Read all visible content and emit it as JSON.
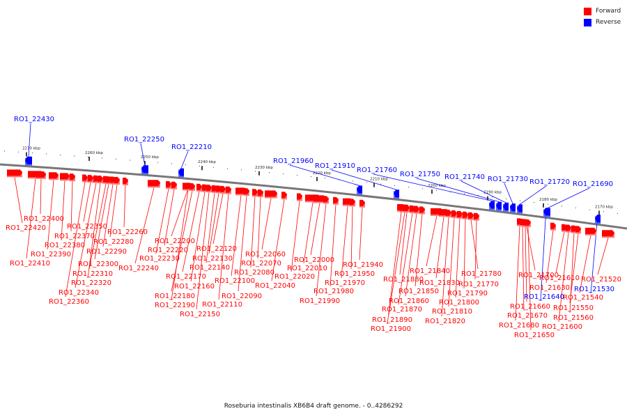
{
  "legend": {
    "forward_label": "Forward",
    "reverse_label": "Reverse",
    "forward_color": "#ff0000",
    "reverse_color": "#0000ff"
  },
  "caption": "Roseburia intestinalis XB6B4 draft genome. - 0..4286292",
  "ticks": [
    "2270 kbp",
    "2260 kbp",
    "2250 kbp",
    "2240 kbp",
    "2230 kbp",
    "2220 kbp",
    "2210 kbp",
    "2200 kbp",
    "2190 kbp",
    "2180 kbp",
    "2170 kbp"
  ],
  "genes": [
    {
      "id": "RO1_22430",
      "strand": "reverse"
    },
    {
      "id": "RO1_22420",
      "strand": "forward"
    },
    {
      "id": "RO1_22410",
      "strand": "forward"
    },
    {
      "id": "RO1_22400",
      "strand": "forward"
    },
    {
      "id": "RO1_22390",
      "strand": "forward"
    },
    {
      "id": "RO1_22380",
      "strand": "forward"
    },
    {
      "id": "RO1_22370",
      "strand": "forward"
    },
    {
      "id": "RO1_22360",
      "strand": "forward"
    },
    {
      "id": "RO1_22350",
      "strand": "forward"
    },
    {
      "id": "RO1_22340",
      "strand": "forward"
    },
    {
      "id": "RO1_22320",
      "strand": "forward"
    },
    {
      "id": "RO1_22310",
      "strand": "forward"
    },
    {
      "id": "RO1_22300",
      "strand": "forward"
    },
    {
      "id": "RO1_22290",
      "strand": "forward"
    },
    {
      "id": "RO1_22280",
      "strand": "forward"
    },
    {
      "id": "RO1_22260",
      "strand": "forward"
    },
    {
      "id": "RO1_22250",
      "strand": "reverse"
    },
    {
      "id": "RO1_22240",
      "strand": "forward"
    },
    {
      "id": "RO1_22230",
      "strand": "forward"
    },
    {
      "id": "RO1_22220",
      "strand": "forward"
    },
    {
      "id": "RO1_22210",
      "strand": "reverse"
    },
    {
      "id": "RO1_22200",
      "strand": "forward"
    },
    {
      "id": "RO1_22190",
      "strand": "forward"
    },
    {
      "id": "RO1_22180",
      "strand": "forward"
    },
    {
      "id": "RO1_22170",
      "strand": "forward"
    },
    {
      "id": "RO1_22160",
      "strand": "forward"
    },
    {
      "id": "RO1_22150",
      "strand": "forward"
    },
    {
      "id": "RO1_22140",
      "strand": "forward"
    },
    {
      "id": "RO1_22130",
      "strand": "forward"
    },
    {
      "id": "RO1_22120",
      "strand": "forward"
    },
    {
      "id": "RO1_22110",
      "strand": "forward"
    },
    {
      "id": "RO1_22100",
      "strand": "forward"
    },
    {
      "id": "RO1_22090",
      "strand": "forward"
    },
    {
      "id": "RO1_22080",
      "strand": "forward"
    },
    {
      "id": "RO1_22070",
      "strand": "forward"
    },
    {
      "id": "RO1_22060",
      "strand": "forward"
    },
    {
      "id": "RO1_22040",
      "strand": "forward"
    },
    {
      "id": "RO1_22020",
      "strand": "forward"
    },
    {
      "id": "RO1_22010",
      "strand": "forward"
    },
    {
      "id": "RO1_22000",
      "strand": "forward"
    },
    {
      "id": "RO1_21990",
      "strand": "forward"
    },
    {
      "id": "RO1_21980",
      "strand": "forward"
    },
    {
      "id": "RO1_21970",
      "strand": "forward"
    },
    {
      "id": "RO1_21960",
      "strand": "reverse"
    },
    {
      "id": "RO1_21950",
      "strand": "forward"
    },
    {
      "id": "RO1_21940",
      "strand": "forward"
    },
    {
      "id": "RO1_21910",
      "strand": "reverse"
    },
    {
      "id": "RO1_21900",
      "strand": "forward"
    },
    {
      "id": "RO1_21890",
      "strand": "forward"
    },
    {
      "id": "RO1_21880",
      "strand": "forward"
    },
    {
      "id": "RO1_21870",
      "strand": "forward"
    },
    {
      "id": "RO1_21860",
      "strand": "forward"
    },
    {
      "id": "RO1_21850",
      "strand": "forward"
    },
    {
      "id": "RO1_21840",
      "strand": "forward"
    },
    {
      "id": "RO1_21830",
      "strand": "forward"
    },
    {
      "id": "RO1_21820",
      "strand": "forward"
    },
    {
      "id": "RO1_21810",
      "strand": "forward"
    },
    {
      "id": "RO1_21800",
      "strand": "forward"
    },
    {
      "id": "RO1_21790",
      "strand": "forward"
    },
    {
      "id": "RO1_21780",
      "strand": "forward"
    },
    {
      "id": "RO1_21770",
      "strand": "forward"
    },
    {
      "id": "RO1_21760",
      "strand": "reverse"
    },
    {
      "id": "RO1_21750",
      "strand": "reverse"
    },
    {
      "id": "RO1_21740",
      "strand": "reverse"
    },
    {
      "id": "RO1_21730",
      "strand": "reverse"
    },
    {
      "id": "RO1_21720",
      "strand": "reverse"
    },
    {
      "id": "RO1_21700",
      "strand": "forward"
    },
    {
      "id": "RO1_21690",
      "strand": "reverse"
    },
    {
      "id": "RO1_21680",
      "strand": "forward"
    },
    {
      "id": "RO1_21670",
      "strand": "forward"
    },
    {
      "id": "RO1_21660",
      "strand": "forward"
    },
    {
      "id": "RO1_21650",
      "strand": "forward"
    },
    {
      "id": "RO1_21640",
      "strand": "reverse"
    },
    {
      "id": "RO1_21630",
      "strand": "forward"
    },
    {
      "id": "RO1_21610",
      "strand": "forward"
    },
    {
      "id": "RO1_21600",
      "strand": "forward"
    },
    {
      "id": "RO1_21560",
      "strand": "forward"
    },
    {
      "id": "RO1_21550",
      "strand": "forward"
    },
    {
      "id": "RO1_21540",
      "strand": "forward"
    },
    {
      "id": "RO1_21530",
      "strand": "reverse"
    },
    {
      "id": "RO1_21520",
      "strand": "forward"
    }
  ]
}
